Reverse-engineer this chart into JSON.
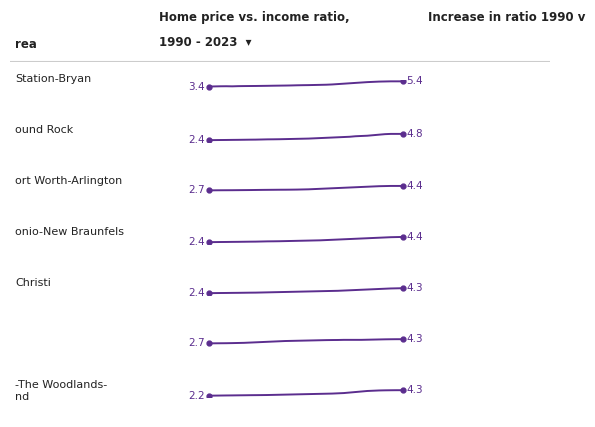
{
  "title_line1": "Home price vs. income ratio,",
  "title_line2": "1990 - 2023",
  "col1_header": "rea",
  "col3_header": "Increase in ratio 1990 v",
  "line_color": "#5b2d8e",
  "bg_color": "#ffffff",
  "separator_color": "#cccccc",
  "rows": [
    {
      "label": "Station-Bryan",
      "start_val": "3.4",
      "end_val": "5.4",
      "values": [
        3.4,
        3.45,
        3.5,
        3.52,
        3.48,
        3.55,
        3.58,
        3.6,
        3.62,
        3.65,
        3.68,
        3.72,
        3.75,
        3.78,
        3.82,
        3.88,
        3.92,
        3.95,
        4.0,
        4.05,
        4.1,
        4.2,
        4.35,
        4.5,
        4.65,
        4.8,
        4.95,
        5.1,
        5.2,
        5.3,
        5.35,
        5.4,
        5.4,
        5.4
      ]
    },
    {
      "label": "ound Rock",
      "start_val": "2.4",
      "end_val": "4.8",
      "values": [
        2.4,
        2.42,
        2.45,
        2.47,
        2.5,
        2.52,
        2.55,
        2.58,
        2.6,
        2.65,
        2.7,
        2.72,
        2.75,
        2.8,
        2.85,
        2.9,
        2.95,
        3.0,
        3.1,
        3.2,
        3.3,
        3.4,
        3.5,
        3.6,
        3.7,
        3.9,
        4.0,
        4.1,
        4.3,
        4.5,
        4.7,
        4.8,
        4.8,
        4.8
      ]
    },
    {
      "label": "ort Worth-Arlington",
      "start_val": "2.7",
      "end_val": "4.4",
      "values": [
        2.7,
        2.72,
        2.74,
        2.75,
        2.76,
        2.78,
        2.8,
        2.82,
        2.85,
        2.88,
        2.9,
        2.92,
        2.94,
        2.95,
        2.97,
        3.0,
        3.05,
        3.1,
        3.2,
        3.3,
        3.4,
        3.5,
        3.6,
        3.7,
        3.8,
        3.9,
        4.0,
        4.1,
        4.2,
        4.3,
        4.35,
        4.4,
        4.4,
        4.4
      ]
    },
    {
      "label": "onio-New Braunfels",
      "start_val": "2.4",
      "end_val": "4.4",
      "values": [
        2.4,
        2.42,
        2.45,
        2.47,
        2.5,
        2.52,
        2.55,
        2.58,
        2.6,
        2.65,
        2.7,
        2.72,
        2.75,
        2.8,
        2.85,
        2.9,
        2.95,
        3.0,
        3.05,
        3.1,
        3.2,
        3.3,
        3.4,
        3.5,
        3.6,
        3.7,
        3.8,
        3.9,
        4.0,
        4.1,
        4.2,
        4.3,
        4.35,
        4.4
      ]
    },
    {
      "label": "Christi",
      "start_val": "2.4",
      "end_val": "4.3",
      "values": [
        2.4,
        2.42,
        2.45,
        2.47,
        2.5,
        2.52,
        2.55,
        2.58,
        2.6,
        2.65,
        2.7,
        2.75,
        2.8,
        2.85,
        2.9,
        2.95,
        3.0,
        3.05,
        3.1,
        3.15,
        3.2,
        3.25,
        3.3,
        3.4,
        3.5,
        3.6,
        3.7,
        3.8,
        3.9,
        4.0,
        4.1,
        4.2,
        4.25,
        4.3
      ]
    },
    {
      "label": "",
      "start_val": "2.7",
      "end_val": "4.3",
      "values": [
        2.7,
        2.72,
        2.74,
        2.76,
        2.8,
        2.85,
        2.9,
        3.0,
        3.1,
        3.2,
        3.3,
        3.4,
        3.5,
        3.6,
        3.65,
        3.7,
        3.75,
        3.8,
        3.85,
        3.9,
        3.95,
        3.98,
        4.0,
        4.05,
        4.05,
        4.05,
        4.05,
        4.1,
        4.15,
        4.2,
        4.25,
        4.28,
        4.3,
        4.3
      ]
    },
    {
      "label": "-The Woodlands-\nnd",
      "start_val": "2.2",
      "end_val": "4.3",
      "values": [
        2.2,
        2.22,
        2.25,
        2.28,
        2.3,
        2.33,
        2.35,
        2.38,
        2.4,
        2.42,
        2.45,
        2.5,
        2.55,
        2.6,
        2.65,
        2.7,
        2.75,
        2.8,
        2.85,
        2.9,
        2.95,
        3.0,
        3.1,
        3.2,
        3.4,
        3.6,
        3.8,
        4.0,
        4.1,
        4.2,
        4.25,
        4.28,
        4.3,
        4.3
      ]
    }
  ]
}
